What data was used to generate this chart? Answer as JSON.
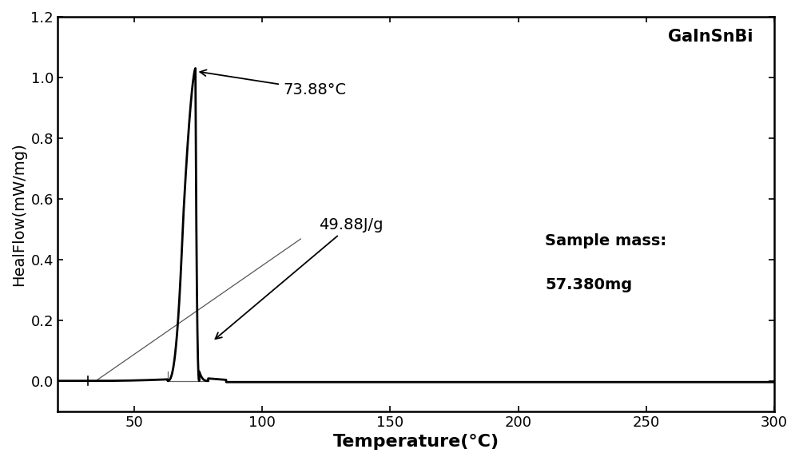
{
  "title": "",
  "xlabel": "Temperature(°C)",
  "ylabel": "HealFlow(mW/mg)",
  "xlim": [
    20,
    300
  ],
  "ylim": [
    -0.1,
    1.2
  ],
  "yticks": [
    0.0,
    0.2,
    0.4,
    0.6,
    0.8,
    1.0,
    1.2
  ],
  "xticks": [
    50,
    100,
    150,
    200,
    250,
    300
  ],
  "peak_temp": 73.88,
  "peak_value": 1.03,
  "onset_temp": 63.0,
  "label_gainsnbi": "GaInSnBi",
  "label_temp": "73.88°C",
  "label_energy": "49.88J/g",
  "label_mass_line1": "Sample mass:",
  "label_mass_line2": "57.380mg",
  "background_color": "#ffffff",
  "line_color": "#000000",
  "fontsize_xlabel": 16,
  "fontsize_ylabel": 14,
  "fontsize_ticks": 13,
  "fontsize_annot": 14,
  "fontsize_gainsnbi": 15,
  "fontsize_mass": 14
}
